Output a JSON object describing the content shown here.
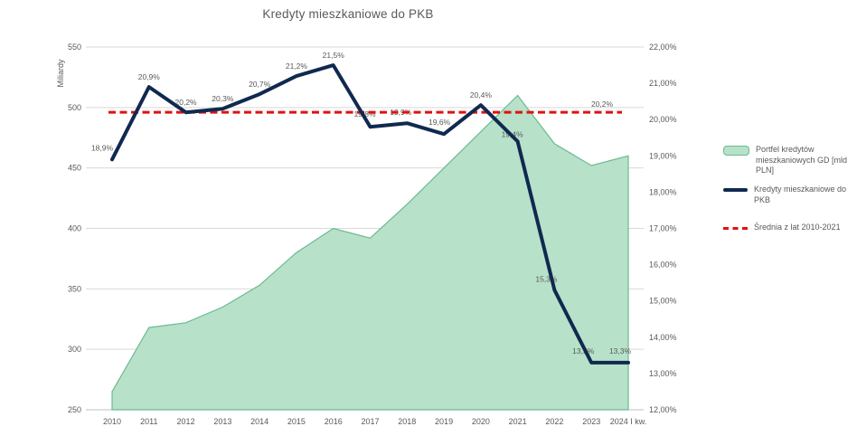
{
  "chart_data": {
    "type": "combo",
    "title": "Kredyty mieszkaniowe do PKB",
    "categories": [
      "2010",
      "2011",
      "2012",
      "2013",
      "2014",
      "2015",
      "2016",
      "2017",
      "2018",
      "2019",
      "2020",
      "2021",
      "2022",
      "2023",
      "2024 I kw."
    ],
    "series": [
      {
        "name": "Portfel kredytów mieszkaniowych GD [mld PLN]",
        "type": "area",
        "axis": "left",
        "values": [
          265,
          318,
          322,
          335,
          353,
          380,
          400,
          392,
          420,
          450,
          480,
          510,
          470,
          452,
          460
        ]
      },
      {
        "name": "Kredyty mieszkaniowe do PKB",
        "type": "line",
        "axis": "right",
        "values": [
          18.9,
          20.9,
          20.2,
          20.3,
          20.7,
          21.2,
          21.5,
          19.8,
          19.9,
          19.6,
          20.4,
          19.4,
          15.3,
          13.3,
          13.3
        ],
        "point_labels": [
          "18,9%",
          "20,9%",
          "20,2%",
          "20,3%",
          "20,7%",
          "21,2%",
          "21,5%",
          "19,8%",
          "19,9%",
          "19,6%",
          "20,4%",
          "19,4%",
          "15,3%",
          "13,3%",
          "13,3%"
        ]
      },
      {
        "name": "Średnia z lat 2010-2021",
        "type": "reference-line",
        "axis": "right",
        "value": 20.2,
        "label": "20,2%"
      }
    ],
    "left_axis": {
      "title": "Miliardy",
      "min": 250,
      "max": 550,
      "step": 50,
      "tick_labels": [
        "550",
        "500",
        "450",
        "400",
        "350",
        "300",
        "250"
      ]
    },
    "right_axis": {
      "min": 12,
      "max": 22,
      "step": 1,
      "tick_labels": [
        "22,00%",
        "21,00%",
        "20,00%",
        "19,00%",
        "18,00%",
        "17,00%",
        "16,00%",
        "15,00%",
        "14,00%",
        "13,00%",
        "12,00%"
      ]
    },
    "legend_position": "right",
    "grid": true,
    "colors": {
      "area_fill": "#b7e1c9",
      "area_stroke": "#6cba92",
      "line": "#10294f",
      "average": "#e01111",
      "gridline": "#d9d9d9",
      "axisline": "#bfbfbf",
      "text": "#595959"
    }
  }
}
